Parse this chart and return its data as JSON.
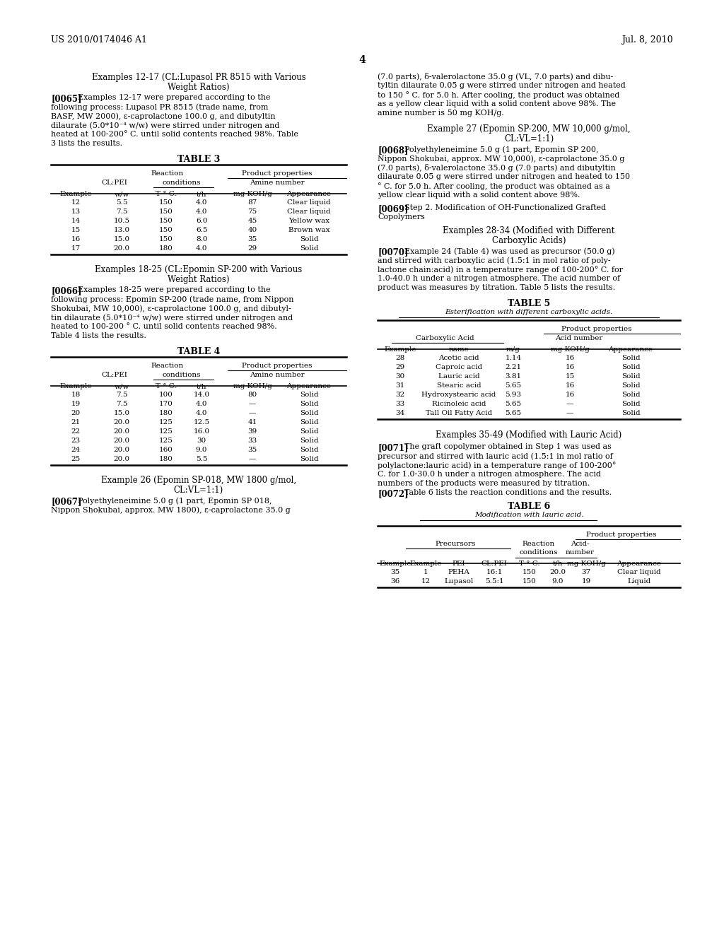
{
  "header_left": "US 2010/0174046 A1",
  "header_right": "Jul. 8, 2010",
  "page_number": "4",
  "background_color": "#ffffff",
  "left_col": {
    "table3_data": [
      [
        "12",
        "5.5",
        "150",
        "4.0",
        "87",
        "Clear liquid"
      ],
      [
        "13",
        "7.5",
        "150",
        "4.0",
        "75",
        "Clear liquid"
      ],
      [
        "14",
        "10.5",
        "150",
        "6.0",
        "45",
        "Yellow wax"
      ],
      [
        "15",
        "13.0",
        "150",
        "6.5",
        "40",
        "Brown wax"
      ],
      [
        "16",
        "15.0",
        "150",
        "8.0",
        "35",
        "Solid"
      ],
      [
        "17",
        "20.0",
        "180",
        "4.0",
        "29",
        "Solid"
      ]
    ],
    "table4_data": [
      [
        "18",
        "7.5",
        "100",
        "14.0",
        "80",
        "Solid"
      ],
      [
        "19",
        "7.5",
        "170",
        "4.0",
        "—",
        "Solid"
      ],
      [
        "20",
        "15.0",
        "180",
        "4.0",
        "—",
        "Solid"
      ],
      [
        "21",
        "20.0",
        "125",
        "12.5",
        "41",
        "Solid"
      ],
      [
        "22",
        "20.0",
        "125",
        "16.0",
        "39",
        "Solid"
      ],
      [
        "23",
        "20.0",
        "125",
        "30",
        "33",
        "Solid"
      ],
      [
        "24",
        "20.0",
        "160",
        "9.0",
        "35",
        "Solid"
      ],
      [
        "25",
        "20.0",
        "180",
        "5.5",
        "—",
        "Solid"
      ]
    ]
  },
  "right_col": {
    "table5_data": [
      [
        "28",
        "Acetic acid",
        "1.14",
        "16",
        "Solid"
      ],
      [
        "29",
        "Caproic acid",
        "2.21",
        "16",
        "Solid"
      ],
      [
        "30",
        "Lauric acid",
        "3.81",
        "15",
        "Solid"
      ],
      [
        "31",
        "Stearic acid",
        "5.65",
        "16",
        "Solid"
      ],
      [
        "32",
        "Hydroxystearic acid",
        "5.93",
        "16",
        "Solid"
      ],
      [
        "33",
        "Ricinoleic acid",
        "5.65",
        "—",
        "Solid"
      ],
      [
        "34",
        "Tall Oil Fatty Acid",
        "5.65",
        "—",
        "Solid"
      ]
    ],
    "table6_data": [
      [
        "35",
        "1",
        "PEHA",
        "16:1",
        "150",
        "20.0",
        "37",
        "Clear liquid"
      ],
      [
        "36",
        "12",
        "Lupasol",
        "5.5:1",
        "150",
        "9.0",
        "19",
        "Liquid"
      ]
    ]
  }
}
